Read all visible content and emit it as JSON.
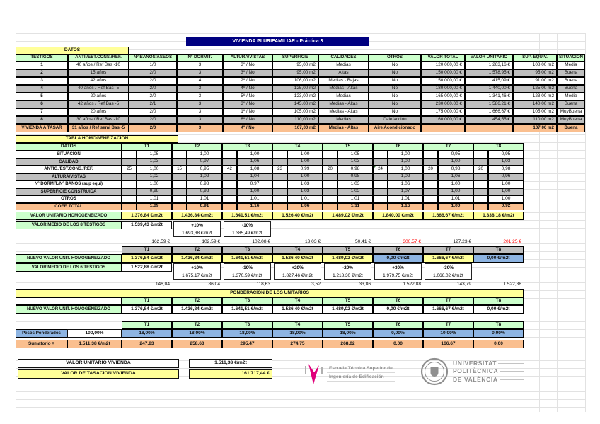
{
  "title": "VIVIENDA PLURIFAMILIAR - Práctica 3",
  "colors": {
    "navy": "#000080",
    "header_green": "#ccffcc",
    "banner_yellow": "#ffff99",
    "row_gray": "#bfbfbf",
    "row_orange": "#fabf8f",
    "excluded_blue": "#8db4e2",
    "alert_red": "#ff0000"
  },
  "top_table": {
    "banner": "DATOS",
    "headers": [
      "TESTIGOS",
      "ANTI./EST.CONS./REF.",
      "Nº BAÑOS/ASEOS",
      "Nº DORMIT.",
      "ALTURA/VISTAS",
      "SUPERFICIE",
      "CALIDADES",
      "OTROS",
      "VALOR TOTAL",
      "VALOR UNITARIO",
      "SUP. EQUIV.",
      "SITUACIÓN"
    ],
    "rows": [
      [
        "1",
        "40 años / Ref Bas -10",
        "1/0",
        "3",
        "3º / No",
        "95,00 m2",
        "Medias",
        "No",
        "120.000,00 €",
        "1.263,16 €",
        "108,00 m2",
        "Media"
      ],
      [
        "2",
        "15 años",
        "2/0",
        "3",
        "3º / No",
        "95,00 m2",
        "Altas",
        "No",
        "150.000,00 €",
        "1.578,95 €",
        "95,00 m2",
        "Buena"
      ],
      [
        "3",
        "42 años",
        "2/0",
        "4",
        "2º / No",
        "106,00 m2",
        "Medias - Bajas",
        "No",
        "150.000,00 €",
        "1.415,09 €",
        "91,00 m2",
        "Buena"
      ],
      [
        "4",
        "40 años / Ref Bas -5",
        "2/0",
        "3",
        "4º / No",
        "125,00 m2",
        "Medias - Altas",
        "No",
        "180.000,00 €",
        "1.440,00 €",
        "125,00 m2",
        "Buena"
      ],
      [
        "5",
        "20 años",
        "2/0",
        "3",
        "5º / No",
        "123,00 m2",
        "Medias",
        "No",
        "165.000,00 €",
        "1.341,46 €",
        "123,00 m2",
        "Media"
      ],
      [
        "6",
        "42 años / Ref Bas -5",
        "2/1",
        "3",
        "3º / No",
        "145,00 m2",
        "Medias - Altas",
        "No",
        "230.000,00 €",
        "1.586,21 €",
        "140,00 m2",
        "Buena"
      ],
      [
        "7",
        "20 años",
        "2/0",
        "3",
        "1º / No",
        "105,00 m2",
        "Medias - Altas",
        "No",
        "175.000,00 €",
        "1.666,67 €",
        "105,00 m2",
        "MuyBuena"
      ],
      [
        "8",
        "30 años / Ref Bas -10",
        "2/0",
        "3",
        "6º / No",
        "110,00 m2",
        "Medias",
        "Calefacción",
        "160.000,00 €",
        "1.454,55 €",
        "110,00 m2",
        "MuyBuena"
      ]
    ],
    "tasar_row": [
      "VIVIENDA A TASAR",
      "31 años / Ref semi Bas -5",
      "2/0",
      "3",
      "4º / No",
      "107,00 m2",
      "Medias - Altas",
      "Aire Acondicionado",
      "",
      "",
      "107,00 m2",
      "Buena"
    ]
  },
  "homog_table": {
    "banner": "TABLA HOMOGENEIZACION",
    "datos_label": "DATOS",
    "t_headers": [
      "T1",
      "T2",
      "T3",
      "T4",
      "T5",
      "T6",
      "T7",
      "T8"
    ],
    "rows": [
      {
        "label": "SITUACION",
        "values": [
          "1,05",
          "1,00",
          "1,00",
          "1,00",
          "1,05",
          "1,00",
          "0,95",
          "0,95"
        ]
      },
      {
        "label": "CALIDAD",
        "values": [
          "1,03",
          "0,97",
          "1,06",
          "1,00",
          "1,03",
          "1,00",
          "1,00",
          "1,03"
        ]
      },
      {
        "label": "ANTIG./EST.CONS./REF.",
        "ages": [
          "25",
          "15",
          "42",
          "23",
          "20",
          "24",
          "20",
          "20"
        ],
        "values": [
          "1,00",
          "0,95",
          "1,08",
          "0,99",
          "0,98",
          "1,00",
          "0,98",
          "0,98"
        ]
      },
      {
        "label": "ALTURA/VISTAS",
        "values": [
          "1,02",
          "1,02",
          "1,04",
          "1,00",
          "0,98",
          "1,02",
          "1,06",
          "0,96"
        ]
      },
      {
        "label": "Nº DORMIT./Nº BAÑOS (sup equi)",
        "values": [
          "1,00",
          "0,98",
          "0,97",
          "1,03",
          "1,03",
          "1,06",
          "1,00",
          "1,00"
        ]
      },
      {
        "label": "SUPERFICIE CONSTRUIDA",
        "values": [
          "0,98",
          "0,98",
          "1,00",
          "1,03",
          "1,03",
          "1,07",
          "1,00",
          "1,00"
        ]
      },
      {
        "label": "OTROS",
        "values": [
          "1,01",
          "1,01",
          "1,01",
          "1,01",
          "1,01",
          "1,01",
          "1,01",
          "1,00"
        ]
      },
      {
        "label": "COEF. TOTAL",
        "values": [
          "1,09",
          "0,91",
          "1,16",
          "1,06",
          "1,11",
          "1,16",
          "1,00",
          "0,92"
        ]
      }
    ]
  },
  "block8": {
    "label": "VALOR UNITARIO HOMOGENEIZADO",
    "values": [
      "1.376,84 €/m2t",
      "1.436,84 €/m2t",
      "1.641,51 €/m2t",
      "1.526,40 €/m2t",
      "1.489,02 €/m2t",
      "1.840,00 €/m2t",
      "1.666,67 €/m2t",
      "1.338,18 €/m2t"
    ],
    "media_label": "VALOR MEDIO DE LOS 8 TESTIGOS",
    "media_value": "1.539,43 €/m2t",
    "limit_boxes": [
      {
        "col": 1,
        "pct": "+10%",
        "value": "1.693,38 €/m2t"
      },
      {
        "col": 2,
        "pct": "-10%",
        "value": "1.385,49 €/m2t"
      }
    ],
    "deviations": [
      "162,59 €",
      "102,59 €",
      "102,08 €",
      "13,03 €",
      "50,41 €",
      "300,57 €",
      "127,23 €",
      "201,25 €"
    ],
    "red_deviations": [
      5,
      7
    ]
  },
  "block6": {
    "label": "NUEVO VALOR UNIT. HOMOGENEIZADO",
    "values": [
      "1.376,84 €/m2t",
      "1.436,84 €/m2t",
      "1.641,51 €/m2t",
      "1.526,40 €/m2t",
      "1.489,02 €/m2t",
      "0,00 €/m2t",
      "1.666,67 €/m2t",
      "0,00 €/m2t"
    ],
    "excluded_cols": [
      5,
      7
    ],
    "media_label": "VALOR MEDIO DE LOS 6 TESTIGOS",
    "media_value": "1.522,88 €/m2t",
    "limit_boxes": [
      {
        "col": 1,
        "pct": "+10%",
        "value": "1.675,17 €/m2t"
      },
      {
        "col": 2,
        "pct": "-10%",
        "value": "1.370,59 €/m2t"
      },
      {
        "col": 3,
        "pct": "+20%",
        "value": "1.827,46 €/m2t"
      },
      {
        "col": 4,
        "pct": "-20%",
        "value": "1.218,30 €/m2t"
      },
      {
        "col": 5,
        "pct": "+30%",
        "value": "1.979,75 €/m2t"
      },
      {
        "col": 6,
        "pct": "-30%",
        "value": "1.066,02 €/m2t"
      }
    ],
    "deviations": [
      "146,04",
      "86,04",
      "118,63",
      "3,52",
      "33,86",
      "1.522,88",
      "143,79",
      "1.522,88"
    ],
    "red_deviations": []
  },
  "ponderacion": {
    "banner": "PONDERACION DE LOS UNITARIOS",
    "t_headers": [
      "T1",
      "T2",
      "T3",
      "T4",
      "T5",
      "T6",
      "T7",
      "T8"
    ],
    "nuevo_label": "NUEVO VALOR UNIT. HOMOGENEIZADO",
    "values": [
      "1.376,84 €/m2t",
      "1.436,84 €/m2t",
      "1.641,51 €/m2t",
      "1.526,40 €/m2t",
      "1.489,02 €/m2t",
      "0,00 €/m2t",
      "1.666,67 €/m2t",
      "0,00 €/m2t"
    ],
    "pesos_label": "Pesos Ponderados",
    "pesos_total": "100,00%",
    "pesos": [
      "18,00%",
      "18,00%",
      "18,00%",
      "18,00%",
      "18,00%",
      "0,00%",
      "10,00%",
      "0,00%"
    ],
    "sum_label": "Sumatorio =",
    "sum_total": "1.511,38 €/m2t",
    "sums": [
      "247,83",
      "258,63",
      "295,47",
      "274,75",
      "268,02",
      "0,00",
      "166,67",
      "0,00"
    ]
  },
  "footer": {
    "unit_label": "VALOR UNITARIO VIVIENDA",
    "unit_value": "1.511,38 €/m2t",
    "tasacion_label": "VALOR DE TASACION VIVIENDA",
    "tasacion_value": "161.717,44 €"
  },
  "logos": {
    "etsie": {
      "line1": "Escuela Técnica Superior de",
      "line2": "Ingeniería de Edificación"
    },
    "upv": {
      "line1": "UNIVERSITAT",
      "line2": "POLITÈCNICA",
      "line3": "DE VALÈNCIA"
    }
  }
}
